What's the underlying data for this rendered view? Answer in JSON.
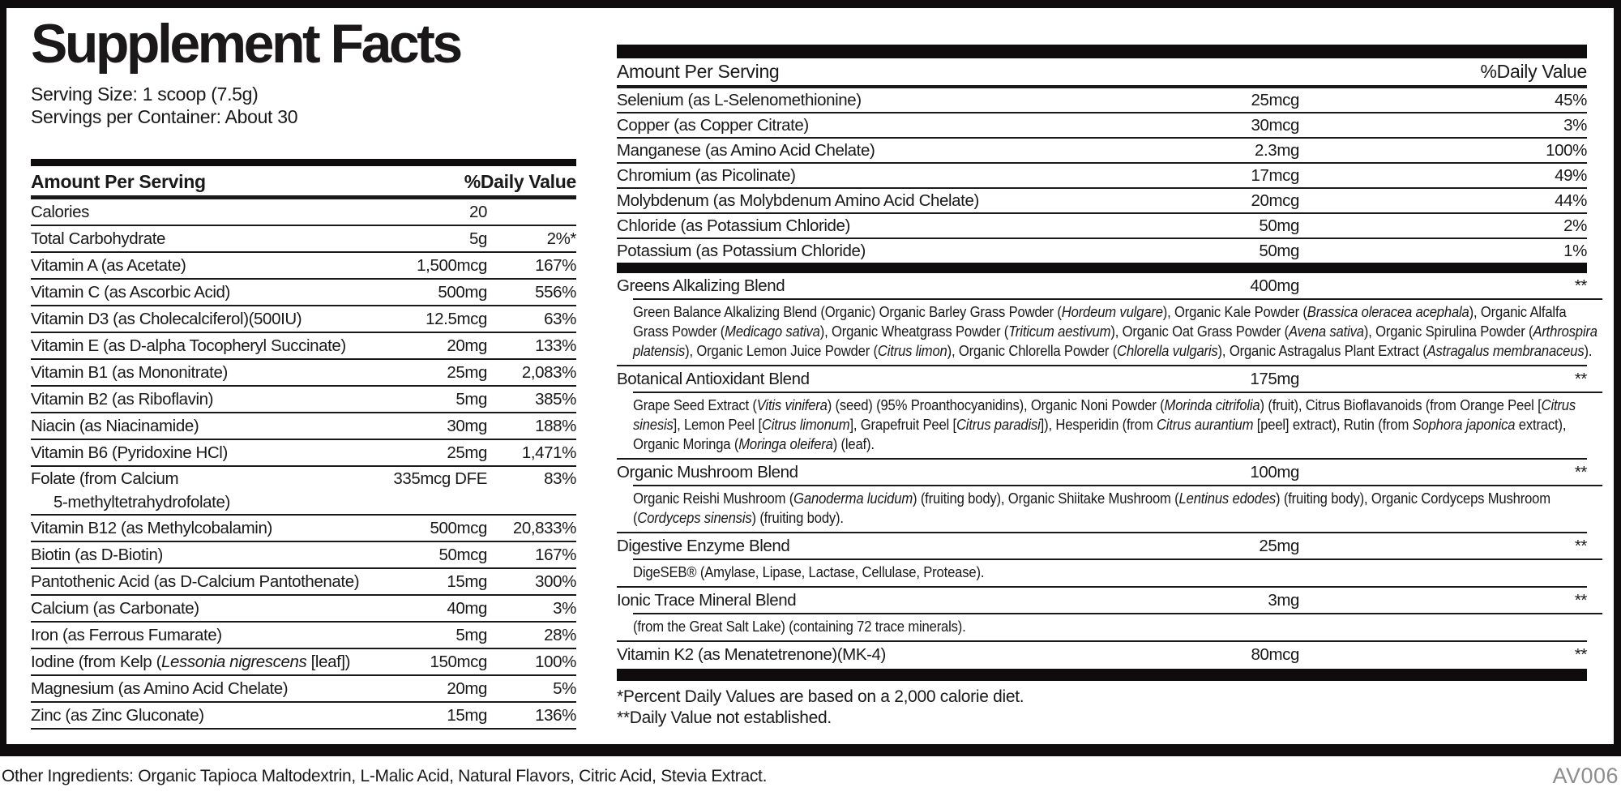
{
  "colors": {
    "ink": "#1a1818",
    "bar": "#0e0c0c",
    "code_gray": "#8d8d8d"
  },
  "panel": {
    "title": "Supplement Facts",
    "serving_size": "Serving Size: 1 scoop (7.5g)",
    "servings_per_container": "Servings per Container: About 30",
    "left_header": {
      "amount": "Amount Per Serving",
      "daily_value": "%Daily Value"
    },
    "right_header": {
      "amount": "Amount Per Serving",
      "daily_value": "%Daily Value"
    },
    "left_rows": [
      {
        "name": "Calories",
        "amount": "20",
        "dv": ""
      },
      {
        "name": "Total Carbohydrate",
        "amount": "5g",
        "dv": "2%*"
      },
      {
        "name": "Vitamin A (as Acetate)",
        "amount": "1,500mcg",
        "dv": "167%"
      },
      {
        "name": "Vitamin C (as Ascorbic Acid)",
        "amount": "500mg",
        "dv": "556%"
      },
      {
        "name": "Vitamin D3 (as Cholecalciferol)(500IU)",
        "amount": "12.5mcg",
        "dv": "63%"
      },
      {
        "name": "Vitamin E (as D-alpha Tocopheryl Succinate)",
        "amount": "20mg",
        "dv": "133%"
      },
      {
        "name": "Vitamin B1 (as Mononitrate)",
        "amount": "25mg",
        "dv": "2,083%"
      },
      {
        "name": "Vitamin B2 (as Riboflavin)",
        "amount": "5mg",
        "dv": "385%"
      },
      {
        "name": "Niacin (as Niacinamide)",
        "amount": "30mg",
        "dv": "188%"
      },
      {
        "name": "Vitamin B6 (Pyridoxine HCl)",
        "amount": "25mg",
        "dv": "1,471%"
      },
      {
        "name": "Folate (from Calcium",
        "name_line2": "5-methyltetrahydrofolate)",
        "amount": "335mcg DFE",
        "dv": "83%"
      },
      {
        "name": "Vitamin B12 (as Methylcobalamin)",
        "amount": "500mcg",
        "dv": "20,833%"
      },
      {
        "name": "Biotin (as D-Biotin)",
        "amount": "50mcg",
        "dv": "167%"
      },
      {
        "name": "Pantothenic Acid (as D-Calcium Pantothenate)",
        "amount": "15mg",
        "dv": "300%"
      },
      {
        "name": "Calcium (as Carbonate)",
        "amount": "40mg",
        "dv": "3%"
      },
      {
        "name": "Iron (as Ferrous Fumarate)",
        "amount": "5mg",
        "dv": "28%"
      },
      {
        "name": [
          [
            "Iodine (from Kelp (",
            false
          ],
          [
            "Lessonia nigrescens",
            true
          ],
          [
            " [leaf])",
            false
          ]
        ],
        "amount": "150mcg",
        "dv": "100%"
      },
      {
        "name": "Magnesium (as Amino Acid Chelate)",
        "amount": "20mg",
        "dv": "5%"
      },
      {
        "name": "Zinc (as Zinc Gluconate)",
        "amount": "15mg",
        "dv": "136%"
      }
    ],
    "right_rows": [
      {
        "name": "Selenium (as L-Selenomethionine)",
        "amount": "25mcg",
        "dv": "45%"
      },
      {
        "name": "Copper (as Copper Citrate)",
        "amount": "30mcg",
        "dv": "3%"
      },
      {
        "name": "Manganese (as Amino Acid Chelate)",
        "amount": "2.3mg",
        "dv": "100%"
      },
      {
        "name": "Chromium (as Picolinate)",
        "amount": "17mcg",
        "dv": "49%"
      },
      {
        "name": "Molybdenum (as Molybdenum Amino Acid Chelate)",
        "amount": "20mcg",
        "dv": "44%"
      },
      {
        "name": "Chloride (as Potassium Chloride)",
        "amount": "50mg",
        "dv": "2%"
      },
      {
        "name": "Potassium (as Potassium Chloride)",
        "amount": "50mg",
        "dv": "1%"
      }
    ],
    "blends": [
      {
        "name": "Greens Alkalizing Blend",
        "amount": "400mg",
        "dv": "**",
        "desc": [
          [
            "Green Balance Alkalizing Blend (Organic) Organic Barley Grass Powder (",
            false
          ],
          [
            "Hordeum vulgare",
            true
          ],
          [
            "), Organic Kale Powder (",
            false
          ],
          [
            "Brassica oleracea acephala",
            true
          ],
          [
            "), Organic Alfalfa Grass Powder (",
            false
          ],
          [
            "Medicago sativa",
            true
          ],
          [
            "), Organic Wheatgrass Powder (",
            false
          ],
          [
            "Triticum aestivum",
            true
          ],
          [
            "), Organic Oat Grass Powder (",
            false
          ],
          [
            "Avena sativa",
            true
          ],
          [
            "), Organic Spirulina Powder (",
            false
          ],
          [
            "Arthrospira platensis",
            true
          ],
          [
            "), Organic Lemon Juice Powder (",
            false
          ],
          [
            "Citrus limon",
            true
          ],
          [
            "), Organic Chlorella Powder (",
            false
          ],
          [
            "Chlorella vulgaris",
            true
          ],
          [
            "), Organic Astragalus Plant Extract (",
            false
          ],
          [
            "Astragalus membranaceus",
            true
          ],
          [
            ").",
            false
          ]
        ]
      },
      {
        "name": "Botanical Antioxidant Blend",
        "amount": "175mg",
        "dv": "**",
        "desc": [
          [
            "Grape Seed Extract (",
            false
          ],
          [
            "Vitis vinifera",
            true
          ],
          [
            ") (seed) (95% Proanthocyanidins), Organic Noni Powder (",
            false
          ],
          [
            "Morinda citrifolia",
            true
          ],
          [
            ") (fruit), Citrus Bioflavanoids (from Orange Peel [",
            false
          ],
          [
            "Citrus sinesis",
            true
          ],
          [
            "], Lemon Peel [",
            false
          ],
          [
            "Citrus limonum",
            true
          ],
          [
            "], Grapefruit Peel [",
            false
          ],
          [
            "Citrus paradisi",
            true
          ],
          [
            "]), Hesperidin (from ",
            false
          ],
          [
            "Citrus aurantium",
            true
          ],
          [
            " [peel] extract), Rutin (from ",
            false
          ],
          [
            "Sophora japonica",
            true
          ],
          [
            " extract), Organic Moringa (",
            false
          ],
          [
            "Moringa oleifera",
            true
          ],
          [
            ") (leaf).",
            false
          ]
        ]
      },
      {
        "name": "Organic Mushroom Blend",
        "amount": "100mg",
        "dv": "**",
        "desc": [
          [
            "Organic Reishi Mushroom (",
            false
          ],
          [
            "Ganoderma lucidum",
            true
          ],
          [
            ") (fruiting body), Organic Shiitake Mushroom (",
            false
          ],
          [
            "Lentinus edodes",
            true
          ],
          [
            ") (fruiting body), Organic Cordyceps Mushroom (",
            false
          ],
          [
            "Cordyceps sinensis",
            true
          ],
          [
            ") (fruiting body).",
            false
          ]
        ]
      },
      {
        "name": "Digestive Enzyme Blend",
        "amount": "25mg",
        "dv": "**",
        "desc": [
          [
            "DigeSEB® (Amylase, Lipase, Lactase, Cellulase, Protease).",
            false
          ]
        ]
      },
      {
        "name": "Ionic Trace Mineral Blend",
        "amount": "3mg",
        "dv": "**",
        "desc": [
          [
            "(from the Great Salt Lake) (containing 72 trace minerals).",
            false
          ]
        ]
      },
      {
        "name": "Vitamin K2 (as Menatetrenone)(MK-4)",
        "amount": "80mcg",
        "dv": "**",
        "desc": []
      }
    ],
    "footnotes": [
      "*Percent Daily Values are based on a 2,000 calorie diet.",
      "**Daily Value not established."
    ]
  },
  "footer": {
    "other_ingredients": "Other Ingredients: Organic Tapioca Maltodextrin, L-Malic Acid, Natural Flavors, Citric Acid, Stevia Extract.",
    "code": "AV006"
  }
}
